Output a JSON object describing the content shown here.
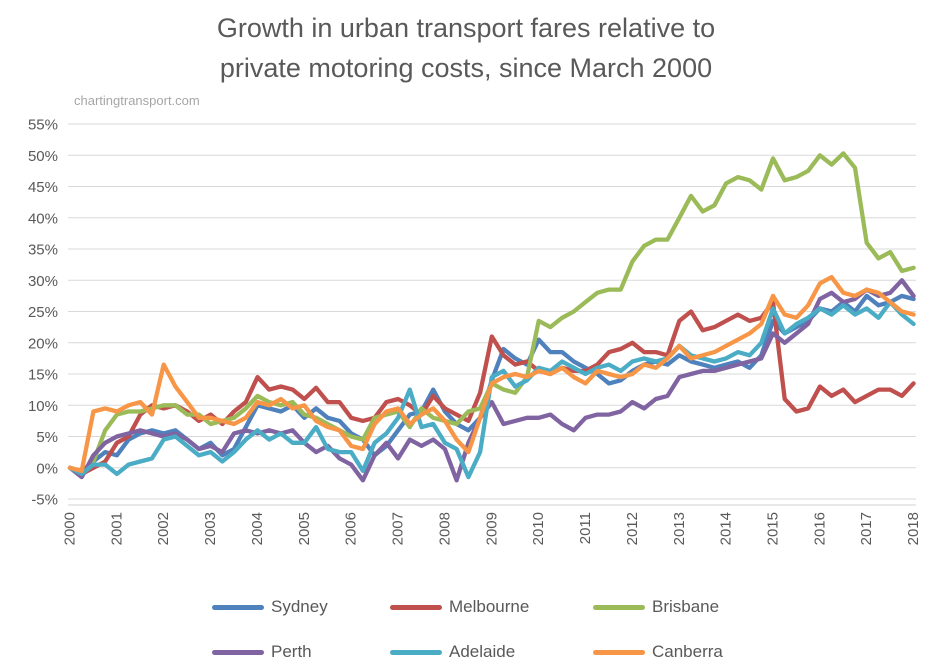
{
  "page": {
    "title_line1": "Growth in urban transport fares relative to",
    "title_line2": "private motoring costs, since March 2000",
    "watermark": "chartingtransport.com"
  },
  "style_colors": {
    "text": "#595959",
    "grid": "#d9d9d9",
    "axis": "#d0d0d0",
    "watermark": "#a6a6a6"
  },
  "chart_data": {
    "type": "line",
    "title": "Growth in urban transport fares relative to private motoring costs, since March 2000",
    "source_watermark": "chartingtransport.com",
    "x_unit": "quarterly points from March 2000 to March 2018 (decimal years)",
    "x_start": 2000.0,
    "x_step": 0.25,
    "x_tick_labels": [
      "2000",
      "2001",
      "2002",
      "2003",
      "2004",
      "2005",
      "2006",
      "2007",
      "2008",
      "2009",
      "2010",
      "2011",
      "2012",
      "2013",
      "2014",
      "2015",
      "2016",
      "2017",
      "2018"
    ],
    "y_ticks": [
      55,
      50,
      45,
      40,
      35,
      30,
      25,
      20,
      15,
      10,
      5,
      0,
      -5
    ],
    "y_tick_labels": [
      "55%",
      "50%",
      "45%",
      "40%",
      "35%",
      "30%",
      "25%",
      "20%",
      "15%",
      "10%",
      "5%",
      "0%",
      "-5%"
    ],
    "ylim": [
      -5,
      55
    ],
    "grid": true,
    "legend_position": "bottom",
    "values_unit": "percent growth",
    "series": [
      {
        "name": "Sydney",
        "color": "#4F81BD",
        "values": [
          0,
          -1,
          1,
          2.5,
          2,
          4.5,
          5.5,
          6,
          5.5,
          6,
          4.5,
          3,
          4,
          2,
          3,
          6.5,
          10,
          9.5,
          9,
          10,
          8,
          9.5,
          8,
          7.5,
          5.5,
          4.5,
          2,
          3.5,
          6,
          8.5,
          9,
          12.5,
          9,
          7,
          6,
          8,
          14,
          19,
          17.5,
          16.5,
          20.5,
          18.5,
          18.5,
          17,
          16,
          15,
          13.5,
          14,
          15.5,
          16.5,
          17,
          16.5,
          18,
          17,
          16.5,
          16,
          16.5,
          17,
          16,
          18,
          23.5,
          21.5,
          22.5,
          23.5,
          25.5,
          25,
          26.5,
          25,
          27.5,
          26,
          26.5,
          27.5,
          27
        ]
      },
      {
        "name": "Melbourne",
        "color": "#C0504D",
        "values": [
          0,
          -1,
          0,
          1,
          4,
          5,
          8.5,
          10,
          9.5,
          10,
          9,
          7.5,
          8.5,
          7,
          9,
          10.5,
          14.5,
          12.5,
          13,
          12.5,
          11,
          12.8,
          10.5,
          10.5,
          8,
          7.5,
          8,
          10.5,
          11,
          10,
          8.5,
          11.5,
          9.5,
          8.5,
          7.5,
          12,
          21,
          18,
          16.5,
          17,
          15.5,
          15,
          16,
          15.5,
          15.5,
          16.5,
          18.5,
          19,
          20,
          18.5,
          18.5,
          18,
          23.5,
          25,
          22,
          22.5,
          23.5,
          24.5,
          23.5,
          24,
          26.5,
          11,
          9,
          9.5,
          13,
          11.5,
          12.5,
          10.5,
          11.5,
          12.5,
          12.5,
          11.5,
          13.5
        ]
      },
      {
        "name": "Brisbane",
        "color": "#9BBB59",
        "values": [
          0,
          -0.5,
          1,
          6,
          8.5,
          9,
          9,
          9.5,
          10,
          10,
          8.5,
          8.5,
          7,
          7.5,
          8,
          9.5,
          11.5,
          10.5,
          10,
          10.5,
          8.5,
          8,
          7,
          6,
          5,
          4.5,
          8,
          8.5,
          9,
          6.5,
          9.5,
          8,
          7.5,
          7,
          9,
          9.5,
          13.5,
          12.5,
          12,
          14.5,
          23.5,
          22.5,
          24,
          25,
          26.5,
          28,
          28.5,
          28.5,
          33,
          35.5,
          36.5,
          36.5,
          40,
          43.5,
          41,
          42,
          45.5,
          46.5,
          46,
          44.5,
          49.5,
          46,
          46.5,
          47.5,
          50,
          48.5,
          50.3,
          48,
          36,
          33.5,
          34.5,
          31.5,
          32
        ]
      },
      {
        "name": "Perth",
        "color": "#8064A2",
        "values": [
          0,
          -1.5,
          2,
          4,
          5,
          5.5,
          6,
          5.5,
          5,
          5.5,
          4.5,
          3,
          3.5,
          2.5,
          5.5,
          6,
          5.5,
          6,
          5.5,
          6,
          4,
          2.5,
          3.5,
          1.5,
          0.5,
          -2,
          2,
          4,
          1.5,
          4.5,
          3.5,
          4.5,
          3,
          -2,
          4,
          8,
          10.5,
          7,
          7.5,
          8,
          8,
          8.5,
          7,
          6,
          8,
          8.5,
          8.5,
          9,
          10.5,
          9.5,
          11,
          11.5,
          14.5,
          15,
          15.5,
          15.5,
          16,
          16.5,
          17,
          17.5,
          21.5,
          20,
          21.5,
          23,
          27,
          28,
          26.5,
          27,
          28.5,
          27.5,
          28,
          30,
          27.5
        ]
      },
      {
        "name": "Adelaide",
        "color": "#4BACC6",
        "values": [
          0,
          -1,
          0.5,
          0.5,
          -1,
          0.5,
          1,
          1.5,
          4.5,
          5,
          3.5,
          2,
          2.5,
          1,
          2.5,
          4.5,
          6,
          4.5,
          5.5,
          4,
          4,
          6.5,
          3,
          2.5,
          2.5,
          -0.5,
          4,
          5.5,
          8,
          12.5,
          6.5,
          7,
          4,
          3,
          -1.5,
          2.5,
          14.5,
          15.5,
          13,
          14,
          16,
          15.5,
          17,
          16,
          15,
          16,
          16.5,
          15.5,
          17,
          17.5,
          17,
          17.5,
          19.5,
          18,
          17.5,
          17,
          17.5,
          18.5,
          18,
          20,
          25.5,
          21.5,
          23,
          24,
          25.5,
          24.5,
          26,
          24.5,
          25.5,
          24,
          26.5,
          24.5,
          23
        ]
      },
      {
        "name": "Canberra",
        "color": "#F79646",
        "values": [
          0,
          -0.5,
          9,
          9.5,
          9,
          10,
          10.5,
          8.5,
          16.5,
          13,
          10.5,
          8,
          8,
          7.5,
          7,
          8,
          10.5,
          10,
          11,
          9.5,
          10,
          7.5,
          6.5,
          6,
          3.5,
          3,
          7,
          9,
          9.5,
          7,
          8.5,
          9.5,
          7.5,
          4.5,
          2.5,
          8,
          13.5,
          14.5,
          15,
          14.5,
          15.5,
          15,
          16,
          14.5,
          13.5,
          15.5,
          15,
          14.5,
          15,
          16.5,
          16,
          17.5,
          19.5,
          17.5,
          18,
          18.5,
          19.5,
          20.5,
          21.5,
          23,
          27.5,
          24.5,
          24,
          26,
          29.5,
          30.5,
          28,
          27.5,
          28.5,
          28,
          26.5,
          25,
          24.5
        ]
      }
    ]
  },
  "legend": {
    "rows": [
      [
        "Sydney",
        "Melbourne",
        "Brisbane"
      ],
      [
        "Perth",
        "Adelaide",
        "Canberra"
      ]
    ]
  }
}
